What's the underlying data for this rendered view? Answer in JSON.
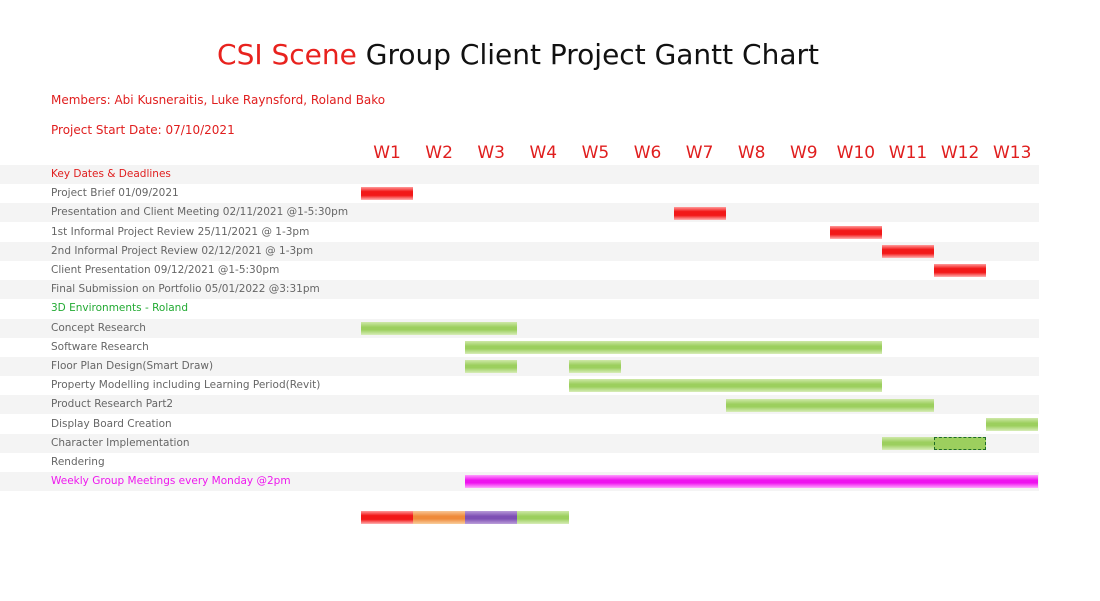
{
  "header": {
    "title_part1": "CSI Scene",
    "title_part2": " Group Client Project Gantt Chart",
    "members": "Members: Abi Kusneraitis, Luke Raynsford, Roland Bako",
    "start_date": "Project Start Date: 07/10/2021"
  },
  "colors": {
    "deadline": "#f21818",
    "roland": "#9ccf5e",
    "meetings": "#ee12ee",
    "orange": "#ef8a3a",
    "purple": "#7e4fb4"
  },
  "chart_data": {
    "type": "gantt",
    "weeks": [
      "W1",
      "W2",
      "W3",
      "W4",
      "W5",
      "W6",
      "W7",
      "W8",
      "W9",
      "W10",
      "W11",
      "W12",
      "W13"
    ],
    "rows": [
      {
        "label": "Key Dates & Deadlines",
        "style": "section",
        "tasks": []
      },
      {
        "label": "Project Brief 01/09/2021",
        "style": "normal",
        "tasks": [
          {
            "start": 1,
            "end": 1,
            "color": "red"
          }
        ]
      },
      {
        "label": "Presentation and Client Meeting 02/11/2021 @1-5:30pm",
        "style": "normal",
        "tasks": [
          {
            "start": 7,
            "end": 7,
            "color": "red"
          }
        ]
      },
      {
        "label": "1st Informal Project Review 25/11/2021 @ 1-3pm",
        "style": "normal",
        "tasks": [
          {
            "start": 10,
            "end": 10,
            "color": "red"
          }
        ]
      },
      {
        "label": "2nd Informal Project Review 02/12/2021 @ 1-3pm",
        "style": "normal",
        "tasks": [
          {
            "start": 11,
            "end": 11,
            "color": "red"
          }
        ]
      },
      {
        "label": "Client Presentation 09/12/2021 @1-5:30pm",
        "style": "normal",
        "tasks": [
          {
            "start": 12,
            "end": 12,
            "color": "red"
          }
        ]
      },
      {
        "label": "Final Submission on Portfolio 05/01/2022 @3:31pm",
        "style": "normal",
        "tasks": []
      },
      {
        "label": "3D Environments - Roland",
        "style": "green",
        "tasks": []
      },
      {
        "label": "Concept Research",
        "style": "normal",
        "tasks": [
          {
            "start": 1,
            "end": 3,
            "color": "green"
          }
        ]
      },
      {
        "label": "Software Research",
        "style": "normal",
        "tasks": [
          {
            "start": 3,
            "end": 10,
            "color": "green"
          }
        ]
      },
      {
        "label": "Floor Plan Design(Smart Draw)",
        "style": "normal",
        "tasks": [
          {
            "start": 3,
            "end": 3,
            "color": "green"
          },
          {
            "start": 5,
            "end": 5,
            "color": "green"
          }
        ]
      },
      {
        "label": "Property Modelling including Learning Period(Revit)",
        "style": "normal",
        "tasks": [
          {
            "start": 5,
            "end": 10,
            "color": "green"
          }
        ]
      },
      {
        "label": "Product Research Part2",
        "style": "normal",
        "tasks": [
          {
            "start": 8,
            "end": 11,
            "color": "green"
          }
        ]
      },
      {
        "label": "Display Board Creation",
        "style": "normal",
        "tasks": [
          {
            "start": 13,
            "end": 13,
            "color": "green"
          }
        ]
      },
      {
        "label": "Character Implementation",
        "style": "normal",
        "tasks": [
          {
            "start": 11,
            "end": 11,
            "color": "green"
          },
          {
            "start": 12,
            "end": 12,
            "color": "dashed"
          }
        ]
      },
      {
        "label": "Rendering",
        "style": "normal",
        "tasks": []
      },
      {
        "label": "Weekly Group Meetings every Monday @2pm",
        "style": "magenta",
        "tasks": [
          {
            "start": 3,
            "end": 13,
            "color": "magenta"
          }
        ]
      }
    ],
    "legend_bars": [
      {
        "week": 1,
        "color": "red"
      },
      {
        "week": 2,
        "color": "orange"
      },
      {
        "week": 3,
        "color": "purple"
      },
      {
        "week": 4,
        "color": "green"
      }
    ]
  }
}
